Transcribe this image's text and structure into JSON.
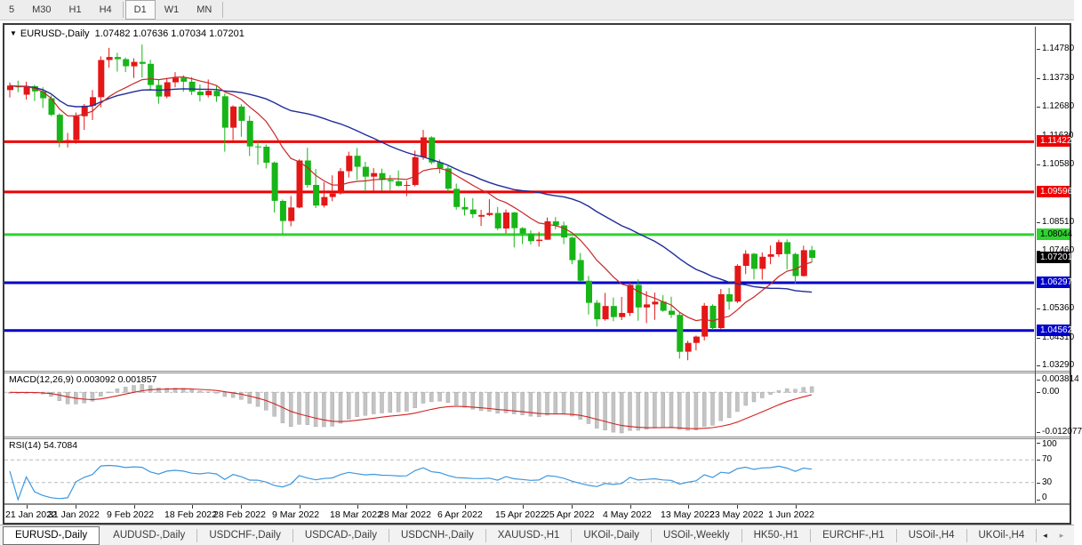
{
  "toolbar": {
    "items": [
      "5",
      "M30",
      "H1",
      "H4",
      "D1",
      "W1",
      "MN"
    ],
    "active": "D1"
  },
  "chart": {
    "symbol": "EURUSD-,Daily",
    "ohlc_text": "1.07482 1.07636 1.07034 1.07201",
    "open": "1.07482",
    "high": "1.07636",
    "low": "1.07034",
    "close": "1.07201",
    "collapse_icon": "▼"
  },
  "chart_data": {
    "type": "candlestick",
    "title": "EURUSD-,Daily",
    "symbol": "EURUSD",
    "timeframe": "Daily",
    "colors": {
      "bull": "#e41616",
      "bear": "#17b517",
      "ma_fast": "#c62828",
      "ma_slow": "#1f2d9b",
      "macd_hist": "#c4c4c4",
      "macd_signal": "#d32222",
      "rsi_line": "#3b97e0",
      "level_dash": "#b8b8b8"
    },
    "price_axis": {
      "range": [
        1.031,
        1.156
      ],
      "ticks": [
        {
          "label": "1.14780",
          "value": 1.1478
        },
        {
          "label": "1.13730",
          "value": 1.1373
        },
        {
          "label": "1.12680",
          "value": 1.1268
        },
        {
          "label": "1.11630",
          "value": 1.1163
        },
        {
          "label": "1.10580",
          "value": 1.1058
        },
        {
          "label": "1.08510",
          "value": 1.0851
        },
        {
          "label": "1.07460",
          "value": 1.0746
        },
        {
          "label": "1.05360",
          "value": 1.0536
        },
        {
          "label": "1.04310",
          "value": 1.0431
        },
        {
          "label": "1.03290",
          "value": 1.0329
        }
      ]
    },
    "hlines": [
      {
        "price": 1.11422,
        "label": "1.11422",
        "color": "#ee0000",
        "label_bg": "#ee0000",
        "label_fg": "#ffffff"
      },
      {
        "price": 1.09596,
        "label": "1.09596",
        "color": "#ee0000",
        "label_bg": "#ee0000",
        "label_fg": "#ffffff"
      },
      {
        "price": 1.08044,
        "label": "1.08044",
        "color": "#2fd32f",
        "label_bg": "#2fd32f",
        "label_fg": "#000000"
      },
      {
        "price": 1.06297,
        "label": "1.06297",
        "color": "#0000cc",
        "label_bg": "#0000cc",
        "label_fg": "#ffffff"
      },
      {
        "price": 1.04562,
        "label": "1.04562",
        "color": "#0000cc",
        "label_bg": "#0000cc",
        "label_fg": "#ffffff"
      }
    ],
    "current_price_tag": {
      "price": 1.07201,
      "label": "1.07201",
      "bg": "#000000",
      "fg": "#ffffff"
    },
    "ma": {
      "fast": {
        "type": "lwma",
        "period": 14
      },
      "slow": {
        "type": "sma",
        "period": 30
      }
    },
    "x_labels": [
      {
        "label": "21 Jan 2022",
        "bar": 2
      },
      {
        "label": "31 Jan 2022",
        "bar": 8
      },
      {
        "label": "9 Feb 2022",
        "bar": 15
      },
      {
        "label": "18 Feb 2022",
        "bar": 22
      },
      {
        "label": "28 Feb 2022",
        "bar": 28
      },
      {
        "label": "9 Mar 2022",
        "bar": 35
      },
      {
        "label": "18 Mar 2022",
        "bar": 42
      },
      {
        "label": "28 Mar 2022",
        "bar": 48
      },
      {
        "label": "6 Apr 2022",
        "bar": 55
      },
      {
        "label": "15 Apr 2022",
        "bar": 62
      },
      {
        "label": "25 Apr 2022",
        "bar": 68
      },
      {
        "label": "4 May 2022",
        "bar": 75
      },
      {
        "label": "13 May 2022",
        "bar": 82
      },
      {
        "label": "23 May 2022",
        "bar": 88
      },
      {
        "label": "1 Jun 2022",
        "bar": 95
      }
    ],
    "candles": [
      [
        1.133,
        1.1357,
        1.1303,
        1.1346
      ],
      [
        1.1346,
        1.1364,
        1.1322,
        1.134
      ],
      [
        1.1313,
        1.136,
        1.1295,
        1.1344
      ],
      [
        1.1344,
        1.1349,
        1.129,
        1.1325
      ],
      [
        1.1325,
        1.134,
        1.1264,
        1.13
      ],
      [
        1.13,
        1.131,
        1.1235,
        1.124
      ],
      [
        1.124,
        1.1245,
        1.1122,
        1.1145
      ],
      [
        1.1145,
        1.1174,
        1.1121,
        1.1148
      ],
      [
        1.1148,
        1.1248,
        1.1135,
        1.1235
      ],
      [
        1.1235,
        1.1279,
        1.1185,
        1.1273
      ],
      [
        1.1273,
        1.133,
        1.1221,
        1.1304
      ],
      [
        1.1304,
        1.1452,
        1.1267,
        1.1439
      ],
      [
        1.1439,
        1.1483,
        1.1411,
        1.145
      ],
      [
        1.145,
        1.1465,
        1.1397,
        1.1442
      ],
      [
        1.1442,
        1.1448,
        1.1395,
        1.1416
      ],
      [
        1.1416,
        1.1445,
        1.1374,
        1.1432
      ],
      [
        1.1432,
        1.1495,
        1.1375,
        1.1425
      ],
      [
        1.1425,
        1.144,
        1.133,
        1.1348
      ],
      [
        1.1348,
        1.1369,
        1.128,
        1.1306
      ],
      [
        1.1306,
        1.1374,
        1.13,
        1.1358
      ],
      [
        1.1358,
        1.1395,
        1.134,
        1.1374
      ],
      [
        1.1374,
        1.1384,
        1.1324,
        1.136
      ],
      [
        1.136,
        1.1377,
        1.1312,
        1.1324
      ],
      [
        1.1324,
        1.135,
        1.1288,
        1.1311
      ],
      [
        1.1311,
        1.1368,
        1.1303,
        1.1327
      ],
      [
        1.1327,
        1.1344,
        1.1287,
        1.1307
      ],
      [
        1.1307,
        1.1317,
        1.1106,
        1.1193
      ],
      [
        1.1193,
        1.1274,
        1.1148,
        1.127
      ],
      [
        1.127,
        1.1278,
        1.116,
        1.1218
      ],
      [
        1.1218,
        1.1236,
        1.109,
        1.1125
      ],
      [
        1.1125,
        1.1144,
        1.1058,
        1.1124
      ],
      [
        1.1124,
        1.1132,
        1.1045,
        1.1066
      ],
      [
        1.1066,
        1.107,
        1.0885,
        1.0927
      ],
      [
        1.0927,
        1.0932,
        1.0806,
        1.0854
      ],
      [
        1.0854,
        1.0945,
        1.0835,
        1.0903
      ],
      [
        1.0903,
        1.1078,
        1.09,
        1.1074
      ],
      [
        1.1074,
        1.112,
        1.0975,
        1.0985
      ],
      [
        1.0985,
        1.1043,
        1.0901,
        1.091
      ],
      [
        1.091,
        1.0995,
        1.0903,
        1.0941
      ],
      [
        1.0941,
        1.102,
        1.0926,
        1.0954
      ],
      [
        1.0954,
        1.1046,
        1.095,
        1.1035
      ],
      [
        1.1035,
        1.1106,
        1.1012,
        1.1091
      ],
      [
        1.1091,
        1.1119,
        1.1003,
        1.1051
      ],
      [
        1.1051,
        1.1069,
        1.0961,
        1.1015
      ],
      [
        1.1015,
        1.1046,
        1.0962,
        1.1028
      ],
      [
        1.1028,
        1.1044,
        1.0963,
        1.1003
      ],
      [
        1.1003,
        1.1021,
        1.0965,
        1.0998
      ],
      [
        1.0998,
        1.1038,
        1.0979,
        1.0982
      ],
      [
        1.0982,
        1.1,
        1.0944,
        1.0985
      ],
      [
        1.0985,
        1.111,
        1.098,
        1.1086
      ],
      [
        1.1086,
        1.1185,
        1.1076,
        1.1158
      ],
      [
        1.1158,
        1.1162,
        1.106,
        1.1067
      ],
      [
        1.1067,
        1.1077,
        1.1027,
        1.1045
      ],
      [
        1.1045,
        1.1054,
        1.096,
        1.0971
      ],
      [
        1.0971,
        1.099,
        1.0895,
        1.0905
      ],
      [
        1.0905,
        1.0939,
        1.0874,
        1.0896
      ],
      [
        1.0896,
        1.0937,
        1.0865,
        1.0879
      ],
      [
        1.087,
        1.0895,
        1.0836,
        1.0876
      ],
      [
        1.0876,
        1.0933,
        1.0871,
        1.0883
      ],
      [
        1.0883,
        1.0905,
        1.0821,
        1.0827
      ],
      [
        1.0827,
        1.0896,
        1.0809,
        1.0885
      ],
      [
        1.0885,
        1.0887,
        1.0758,
        1.0828
      ],
      [
        1.0828,
        1.0832,
        1.077,
        1.0808
      ],
      [
        1.0808,
        1.082,
        1.0769,
        1.0781
      ],
      [
        1.0781,
        1.0815,
        1.0761,
        1.0786
      ],
      [
        1.0786,
        1.0867,
        1.0785,
        1.0853
      ],
      [
        1.0853,
        1.0868,
        1.0824,
        1.0838
      ],
      [
        1.0838,
        1.0852,
        1.077,
        1.0794
      ],
      [
        1.0794,
        1.0797,
        1.0697,
        1.0712
      ],
      [
        1.0712,
        1.0738,
        1.0635,
        1.0637
      ],
      [
        1.0637,
        1.0655,
        1.0514,
        1.0557
      ],
      [
        1.0557,
        1.0567,
        1.0471,
        1.0497
      ],
      [
        1.0497,
        1.0593,
        1.0492,
        1.0545
      ],
      [
        1.0545,
        1.0576,
        1.049,
        1.0505
      ],
      [
        1.0505,
        1.0578,
        1.0494,
        1.052
      ],
      [
        1.052,
        1.0631,
        1.0509,
        1.0622
      ],
      [
        1.0622,
        1.0642,
        1.0492,
        1.054
      ],
      [
        1.054,
        1.0599,
        1.0483,
        1.0551
      ],
      [
        1.0551,
        1.0594,
        1.0495,
        1.0561
      ],
      [
        1.0561,
        1.0585,
        1.0524,
        1.0528
      ],
      [
        1.0528,
        1.0579,
        1.0502,
        1.0513
      ],
      [
        1.0513,
        1.0525,
        1.0354,
        1.0379
      ],
      [
        1.0379,
        1.0419,
        1.0348,
        1.0411
      ],
      [
        1.0411,
        1.0438,
        1.0384,
        1.0434
      ],
      [
        1.0434,
        1.0556,
        1.042,
        1.0546
      ],
      [
        1.0546,
        1.0551,
        1.0459,
        1.0465
      ],
      [
        1.0465,
        1.0607,
        1.0461,
        1.0588
      ],
      [
        1.0588,
        1.0611,
        1.0532,
        1.0561
      ],
      [
        1.0561,
        1.0697,
        1.0556,
        1.0691
      ],
      [
        1.0691,
        1.0748,
        1.0661,
        1.0735
      ],
      [
        1.0735,
        1.0738,
        1.0642,
        1.068
      ],
      [
        1.068,
        1.074,
        1.0641,
        1.0724
      ],
      [
        1.0724,
        1.0765,
        1.0697,
        1.0733
      ],
      [
        1.0733,
        1.0786,
        1.0724,
        1.0777
      ],
      [
        1.0777,
        1.0787,
        1.0678,
        1.0734
      ],
      [
        1.0734,
        1.0739,
        1.0627,
        1.0654
      ],
      [
        1.0654,
        1.0764,
        1.0652,
        1.0748
      ],
      [
        1.07482,
        1.07636,
        1.07034,
        1.07201
      ]
    ],
    "macd": {
      "label": "MACD(12,26,9)",
      "value_main": "0.003092",
      "value_signal": "0.001857",
      "fast": 12,
      "slow": 26,
      "signal": 9,
      "range": [
        -0.0135,
        0.0058
      ],
      "axis_labels": [
        {
          "label": "0.003814",
          "value": 0.003814
        },
        {
          "label": "0.00",
          "value": 0
        },
        {
          "label": "-0.012077",
          "value": -0.012077
        }
      ]
    },
    "rsi": {
      "label": "RSI(14)",
      "value": "54.7084",
      "period": 14,
      "levels": [
        70,
        30
      ],
      "range": [
        0,
        100
      ],
      "axis_labels": [
        {
          "label": "100",
          "value": 100
        },
        {
          "label": "70",
          "value": 70
        },
        {
          "label": "30",
          "value": 30
        },
        {
          "label": "0",
          "value": 0
        }
      ]
    }
  },
  "tabs": {
    "items": [
      {
        "label": "EURUSD-,Daily",
        "active": true
      },
      {
        "label": "AUDUSD-,Daily",
        "active": false
      },
      {
        "label": "USDCHF-,Daily",
        "active": false
      },
      {
        "label": "USDCAD-,Daily",
        "active": false
      },
      {
        "label": "USDCNH-,Daily",
        "active": false
      },
      {
        "label": "XAUUSD-,H1",
        "active": false
      },
      {
        "label": "UKOil-,Daily",
        "active": false
      },
      {
        "label": "USOil-,Weekly",
        "active": false
      },
      {
        "label": "HK50-,H1",
        "active": false
      },
      {
        "label": "EURCHF-,H1",
        "active": false
      },
      {
        "label": "USOil-,H4",
        "active": false
      },
      {
        "label": "UKOil-,H4",
        "active": false
      }
    ],
    "scroll_left": "◂",
    "scroll_right": "▸"
  }
}
